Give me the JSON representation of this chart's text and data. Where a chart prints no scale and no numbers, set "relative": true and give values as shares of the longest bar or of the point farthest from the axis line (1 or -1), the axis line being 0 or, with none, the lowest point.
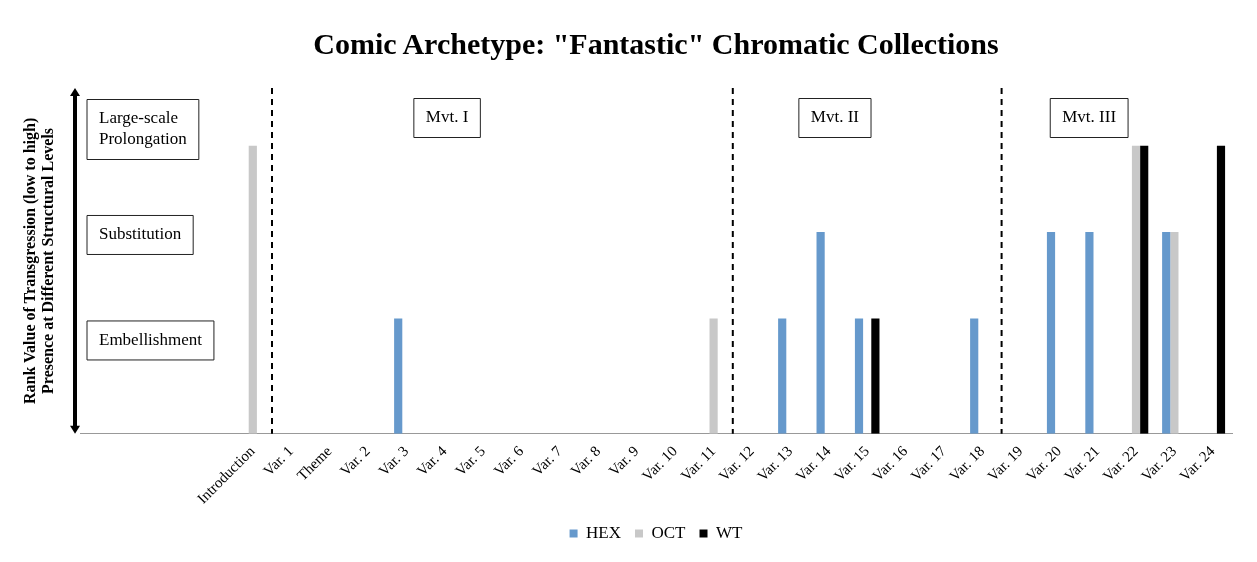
{
  "chart_data": {
    "type": "bar",
    "title": "Comic Archetype: \"Fantastic\" Chromatic Collections",
    "ylabel": "Rank Value of Transgression (low to high)\nPresence at Different Structural Levels",
    "relative": true,
    "categories": [
      null,
      null,
      null,
      null,
      "Introduction",
      "Var. 1",
      "Theme",
      "Var. 2",
      "Var. 3",
      "Var. 4",
      "Var. 5",
      "Var. 6",
      "Var. 7",
      "Var. 8",
      "Var. 9",
      "Var. 10",
      "Var. 11",
      "Var. 12",
      "Var. 13",
      "Var. 14",
      "Var. 15",
      "Var. 16",
      "Var. 17",
      "Var. 18",
      "Var. 19",
      "Var. 20",
      "Var. 21",
      "Var. 22",
      "Var. 23",
      "Var. 24"
    ],
    "series": [
      {
        "name": "HEX",
        "color": "#6699cc",
        "values": [
          null,
          null,
          null,
          null,
          null,
          null,
          null,
          null,
          0.4,
          null,
          null,
          null,
          null,
          null,
          null,
          null,
          null,
          null,
          0.4,
          0.7,
          0.4,
          null,
          null,
          0.4,
          null,
          0.7,
          0.7,
          null,
          0.7,
          null
        ]
      },
      {
        "name": "OCT",
        "color": "#c8c8c8",
        "values": [
          null,
          null,
          null,
          null,
          1,
          null,
          null,
          null,
          null,
          null,
          null,
          null,
          null,
          null,
          null,
          null,
          0.4,
          null,
          null,
          null,
          null,
          null,
          null,
          null,
          null,
          null,
          null,
          1,
          0.7,
          null
        ]
      },
      {
        "name": "WT",
        "color": "#000000",
        "values": [
          null,
          null,
          null,
          null,
          null,
          null,
          null,
          null,
          null,
          null,
          null,
          null,
          null,
          null,
          null,
          null,
          null,
          null,
          null,
          null,
          0.4,
          null,
          null,
          null,
          null,
          null,
          null,
          1,
          null,
          1
        ]
      }
    ],
    "annotations": [
      "Large-scale\nProlongation",
      "Substitution",
      "Embellishment",
      "Mvt. I",
      "Mvt. II",
      "Mvt. III"
    ],
    "legend": "bottom",
    "grid": false
  }
}
